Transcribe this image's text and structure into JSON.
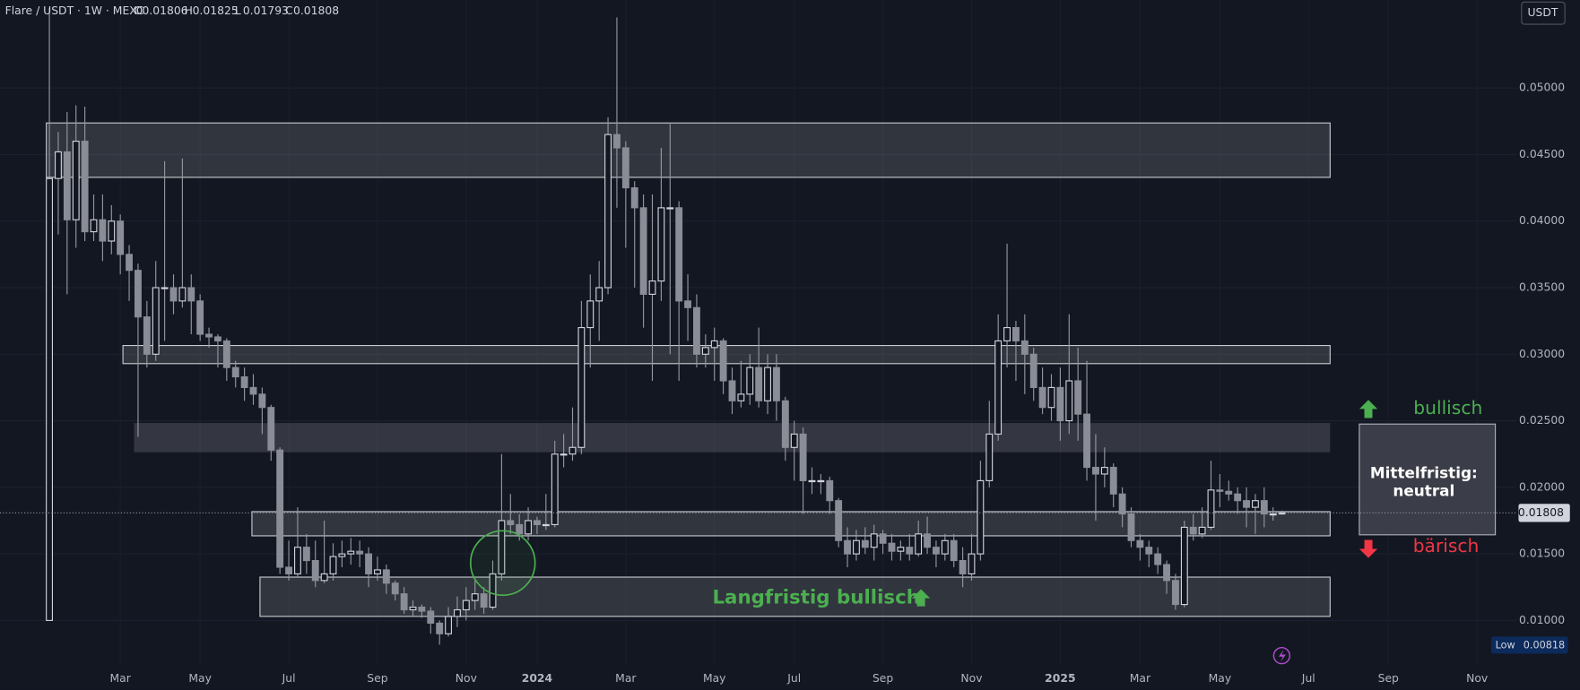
{
  "chart_data": {
    "type": "candlestick",
    "symbol": "Flare / USDT · 1W · MEXC",
    "ohlc_labels": [
      "O",
      "H",
      "L",
      "C"
    ],
    "currency": "USDT",
    "low_label": "Low",
    "annotations": {
      "long_term": "Langfristig bullisch",
      "box": [
        "Mittelfristig:",
        "neutral"
      ],
      "bullish": "bullisch",
      "bearish": "bärisch"
    },
    "colors": {
      "up": "#d1d4dc",
      "down": "#8a8d96",
      "wick": "#9598a1"
    },
    "ylim": [
      0.0066,
      0.0566
    ],
    "yticks": [
      {
        "value": 0.01,
        "label": "0.01000"
      },
      {
        "value": 0.015,
        "label": "0.01500"
      },
      {
        "value": 0.02,
        "label": "0.02000"
      },
      {
        "value": 0.025,
        "label": "0.02500"
      },
      {
        "value": 0.03,
        "label": "0.03000"
      },
      {
        "value": 0.035,
        "label": "0.03500"
      },
      {
        "value": 0.04,
        "label": "0.04000"
      },
      {
        "value": 0.045,
        "label": "0.04500"
      },
      {
        "value": 0.05,
        "label": "0.05000"
      }
    ],
    "categories": [
      null,
      null,
      null,
      null,
      null,
      null,
      null,
      null,
      null,
      null,
      null,
      null,
      null,
      "Mar",
      null,
      null,
      null,
      null,
      null,
      null,
      null,
      null,
      "May",
      null,
      null,
      null,
      null,
      null,
      null,
      null,
      null,
      null,
      "Jul",
      null,
      null,
      null,
      null,
      null,
      null,
      null,
      null,
      null,
      "Sep",
      null,
      null,
      null,
      null,
      null,
      null,
      null,
      null,
      null,
      "Nov",
      null,
      null,
      null,
      null,
      null,
      null,
      null,
      "2024",
      null,
      null,
      null,
      null,
      null,
      null,
      null,
      null,
      null,
      "Mar",
      null,
      null,
      null,
      null,
      null,
      null,
      null,
      null,
      null,
      "May",
      null,
      null,
      null,
      null,
      null,
      null,
      null,
      null,
      "Jul",
      null,
      null,
      null,
      null,
      null,
      null,
      null,
      null,
      null,
      "Sep",
      null,
      null,
      null,
      null,
      null,
      null,
      null,
      null,
      null,
      "Nov",
      null,
      null,
      null,
      null,
      null,
      null,
      null,
      null,
      null,
      "2025",
      null,
      null,
      null,
      null,
      null,
      null,
      null,
      null,
      "Mar",
      null,
      null,
      null,
      null,
      null,
      null,
      null,
      null,
      "May",
      null,
      null,
      null,
      null,
      null,
      null,
      null,
      null,
      null,
      "Jul",
      null,
      null,
      null,
      null,
      null,
      null,
      null,
      null,
      "Sep",
      null,
      null,
      null,
      null,
      null,
      null,
      null,
      null,
      null,
      "Nov",
      null,
      null,
      null
    ],
    "open": [
      null,
      null,
      null,
      null,
      null,
      0.01,
      0.0432,
      0.0452,
      0.0401,
      0.046,
      0.0392,
      0.0401,
      0.0385,
      0.04,
      0.0375,
      0.0363,
      0.0328,
      0.03,
      0.035,
      0.035,
      0.034,
      0.035,
      0.034,
      0.0315,
      0.0313,
      0.031,
      0.029,
      0.0283,
      0.0275,
      0.027,
      0.026,
      0.0228,
      0.014,
      0.0135,
      0.0155,
      0.0145,
      0.013,
      0.0135,
      0.0148,
      0.015,
      0.0152,
      0.015,
      0.0135,
      0.0138,
      0.0128,
      0.012,
      0.0108,
      0.011,
      0.0107,
      0.0098,
      0.009,
      0.0103,
      0.0108,
      0.0115,
      0.012,
      0.011,
      0.0135,
      0.0175,
      0.0172,
      0.0165,
      0.0175,
      0.0172,
      0.0172,
      0.0225,
      0.0225,
      0.023,
      0.032,
      0.034,
      0.035,
      0.0465,
      0.0455,
      0.0425,
      0.041,
      0.0345,
      0.0355,
      0.041,
      0.041,
      0.034,
      0.0335,
      0.03,
      0.0305,
      0.031,
      0.028,
      0.0265,
      0.027,
      0.029,
      0.0265,
      0.029,
      0.0265,
      0.023,
      0.024,
      0.0205,
      0.0205,
      0.0205,
      0.019,
      0.016,
      0.015,
      0.016,
      0.0155,
      0.0165,
      0.0158,
      0.0152,
      0.0155,
      0.015,
      0.0165,
      0.0155,
      0.015,
      0.016,
      0.0145,
      0.0135,
      0.015,
      0.0205,
      0.024,
      0.031,
      0.032,
      0.031,
      0.03,
      0.0275,
      0.026,
      0.0275,
      0.025,
      0.028,
      0.0255,
      0.0215,
      0.021,
      0.0215,
      0.0195,
      0.018,
      0.016,
      0.0155,
      0.015,
      0.0142,
      0.013,
      0.0112,
      0.017,
      0.0165,
      0.017,
      0.0198,
      0.0197,
      0.0195,
      0.019,
      0.0185,
      0.019,
      0.018,
      0.01806,
      null,
      null,
      null,
      null,
      null,
      null,
      null,
      null,
      null,
      null,
      null,
      null,
      null,
      null,
      null,
      null,
      null,
      null,
      null,
      null,
      null,
      null,
      null,
      null,
      null
    ],
    "high": [
      null,
      null,
      null,
      null,
      null,
      0.056,
      0.0467,
      0.0482,
      0.0487,
      0.0486,
      0.042,
      0.042,
      0.0412,
      0.0405,
      0.0382,
      0.0368,
      0.034,
      0.037,
      0.0445,
      0.036,
      0.0447,
      0.036,
      0.0345,
      0.032,
      0.0315,
      0.0312,
      0.0295,
      0.029,
      0.0285,
      0.0275,
      0.0262,
      0.023,
      0.016,
      0.0185,
      0.0165,
      0.016,
      0.0175,
      0.0158,
      0.016,
      0.0162,
      0.016,
      0.0155,
      0.0148,
      0.0142,
      0.013,
      0.0125,
      0.0115,
      0.0112,
      0.011,
      0.01,
      0.011,
      0.0118,
      0.0125,
      0.013,
      0.0125,
      0.0145,
      0.0225,
      0.0195,
      0.018,
      0.0185,
      0.0178,
      0.0195,
      0.0235,
      0.024,
      0.026,
      0.034,
      0.036,
      0.037,
      0.0478,
      0.0553,
      0.046,
      0.043,
      0.042,
      0.042,
      0.0455,
      0.0473,
      0.0415,
      0.036,
      0.0345,
      0.0315,
      0.032,
      0.0312,
      0.029,
      0.0295,
      0.03,
      0.032,
      0.03,
      0.03,
      0.0268,
      0.025,
      0.0245,
      0.0215,
      0.021,
      0.0208,
      0.0192,
      0.017,
      0.0168,
      0.017,
      0.0172,
      0.0168,
      0.0165,
      0.016,
      0.0165,
      0.0175,
      0.0178,
      0.016,
      0.0165,
      0.0165,
      0.0155,
      0.0165,
      0.022,
      0.0265,
      0.033,
      0.0383,
      0.0325,
      0.033,
      0.0305,
      0.029,
      0.0285,
      0.029,
      0.033,
      0.0305,
      0.0295,
      0.024,
      0.023,
      0.0218,
      0.02,
      0.0185,
      0.0165,
      0.016,
      0.0155,
      0.0145,
      0.0135,
      0.0175,
      0.018,
      0.0185,
      0.022,
      0.021,
      0.0205,
      0.02,
      0.02,
      0.0195,
      0.02,
      0.0185,
      0.01825,
      null,
      null,
      null,
      null,
      null,
      null,
      null,
      null,
      null,
      null,
      null,
      null,
      null,
      null,
      null,
      null,
      null,
      null,
      null,
      null,
      null,
      null,
      null,
      null,
      null
    ],
    "low": [
      null,
      null,
      null,
      null,
      null,
      0.01,
      0.039,
      0.0345,
      0.038,
      0.0385,
      0.0385,
      0.037,
      0.0375,
      0.036,
      0.034,
      0.0238,
      0.029,
      0.0295,
      0.031,
      0.033,
      0.0335,
      0.0315,
      0.031,
      0.0305,
      0.029,
      0.028,
      0.0275,
      0.0265,
      0.0262,
      0.024,
      0.022,
      0.0135,
      0.013,
      0.0132,
      0.0135,
      0.0125,
      0.0128,
      0.013,
      0.014,
      0.0142,
      0.014,
      0.0125,
      0.013,
      0.012,
      0.0115,
      0.0105,
      0.0103,
      0.0102,
      0.009,
      0.00818,
      0.0088,
      0.0095,
      0.01,
      0.0108,
      0.0105,
      0.0108,
      0.013,
      0.0165,
      0.016,
      0.016,
      0.0165,
      0.0168,
      0.017,
      0.0215,
      0.022,
      0.0225,
      0.029,
      0.031,
      0.0345,
      0.041,
      0.038,
      0.035,
      0.032,
      0.028,
      0.034,
      0.03,
      0.028,
      0.031,
      0.029,
      0.029,
      0.028,
      0.027,
      0.0255,
      0.026,
      0.0262,
      0.026,
      0.0255,
      0.025,
      0.022,
      0.0205,
      0.018,
      0.0195,
      0.0195,
      0.018,
      0.0155,
      0.014,
      0.0145,
      0.015,
      0.0145,
      0.015,
      0.0145,
      0.0145,
      0.0145,
      0.0148,
      0.015,
      0.014,
      0.0145,
      0.014,
      0.0125,
      0.013,
      0.0145,
      0.02,
      0.0235,
      0.029,
      0.028,
      0.027,
      0.0265,
      0.0255,
      0.025,
      0.0235,
      0.024,
      0.0235,
      0.0205,
      0.0175,
      0.02,
      0.0185,
      0.017,
      0.0155,
      0.0145,
      0.014,
      0.0135,
      0.012,
      0.0108,
      0.011,
      0.016,
      0.0162,
      0.0168,
      0.0185,
      0.019,
      0.018,
      0.017,
      0.0165,
      0.017,
      0.0175,
      0.01793,
      null,
      null,
      null,
      null,
      null,
      null,
      null,
      null,
      null,
      null,
      null,
      null,
      null,
      null,
      null,
      null,
      null,
      null,
      null,
      null,
      null,
      null,
      null,
      null,
      null
    ],
    "close": [
      null,
      null,
      null,
      null,
      null,
      0.0432,
      0.0452,
      0.0401,
      0.046,
      0.0392,
      0.0401,
      0.0385,
      0.04,
      0.0375,
      0.0363,
      0.0328,
      0.03,
      0.035,
      0.035,
      0.034,
      0.035,
      0.034,
      0.0315,
      0.0313,
      0.031,
      0.029,
      0.0283,
      0.0275,
      0.027,
      0.026,
      0.0228,
      0.014,
      0.0135,
      0.0155,
      0.0145,
      0.013,
      0.0135,
      0.0148,
      0.015,
      0.0152,
      0.015,
      0.0135,
      0.0138,
      0.0128,
      0.012,
      0.0108,
      0.011,
      0.0107,
      0.0098,
      0.009,
      0.0103,
      0.0108,
      0.0115,
      0.012,
      0.011,
      0.0135,
      0.0175,
      0.0172,
      0.0165,
      0.0175,
      0.0172,
      0.0172,
      0.0225,
      0.0225,
      0.023,
      0.032,
      0.034,
      0.035,
      0.0465,
      0.0455,
      0.0425,
      0.041,
      0.0345,
      0.0355,
      0.041,
      0.041,
      0.034,
      0.0335,
      0.03,
      0.0305,
      0.031,
      0.028,
      0.0265,
      0.027,
      0.029,
      0.0265,
      0.029,
      0.0265,
      0.023,
      0.024,
      0.0205,
      0.0205,
      0.0205,
      0.019,
      0.016,
      0.015,
      0.016,
      0.0155,
      0.0165,
      0.0158,
      0.0152,
      0.0155,
      0.015,
      0.0165,
      0.0155,
      0.015,
      0.016,
      0.0145,
      0.0135,
      0.015,
      0.0205,
      0.024,
      0.031,
      0.032,
      0.031,
      0.03,
      0.0275,
      0.026,
      0.0275,
      0.025,
      0.028,
      0.0255,
      0.0215,
      0.021,
      0.0215,
      0.0195,
      0.018,
      0.016,
      0.0155,
      0.015,
      0.0142,
      0.013,
      0.0112,
      0.017,
      0.0165,
      0.017,
      0.0198,
      0.0197,
      0.0195,
      0.019,
      0.0185,
      0.019,
      0.018,
      0.018,
      0.01808,
      null,
      null,
      null,
      null,
      null,
      null,
      null,
      null,
      null,
      null,
      null,
      null,
      null,
      null,
      null,
      null,
      null,
      null,
      null,
      null,
      null,
      null,
      null,
      null,
      null
    ]
  }
}
